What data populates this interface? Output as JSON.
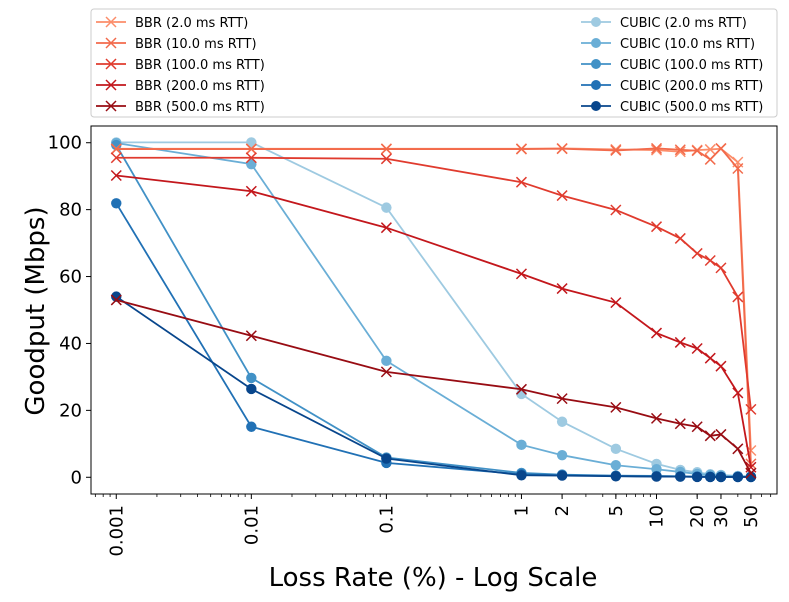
{
  "chart_data": {
    "type": "line",
    "xscale": "log",
    "xlabel": "Loss Rate (%) - Log Scale",
    "ylabel": "Goodput (Mbps)",
    "xlim": [
      0.00065,
      78
    ],
    "ylim": [
      -5,
      105
    ],
    "xticks": [
      {
        "value": 0.001,
        "label": "0.001"
      },
      {
        "value": 0.01,
        "label": "0.01"
      },
      {
        "value": 0.1,
        "label": "0.1"
      },
      {
        "value": 1,
        "label": "1"
      },
      {
        "value": 2,
        "label": "2"
      },
      {
        "value": 5,
        "label": "5"
      },
      {
        "value": 10,
        "label": "10"
      },
      {
        "value": 20,
        "label": "20"
      },
      {
        "value": 30,
        "label": "30"
      },
      {
        "value": 50,
        "label": "50"
      }
    ],
    "yticks": [
      0,
      20,
      40,
      60,
      80,
      100
    ],
    "legend_position": "top, above plot",
    "series": [
      {
        "name": "BBR (2.0 ms RTT)",
        "color": "#fc8d6a",
        "marker": "x",
        "x": [
          0.001,
          0.01,
          0.1,
          1,
          2,
          5,
          10,
          15,
          20,
          25,
          30,
          40,
          50
        ],
        "y": [
          98.2,
          98.2,
          98.2,
          98.2,
          98.3,
          98.0,
          97.8,
          97.3,
          97.8,
          98.0,
          98.2,
          94.2,
          8.0
        ]
      },
      {
        "name": "BBR (10.0 ms RTT)",
        "color": "#f26a4b",
        "marker": "x",
        "x": [
          0.001,
          0.01,
          0.1,
          1,
          2,
          5,
          10,
          15,
          20,
          25,
          30,
          40,
          50
        ],
        "y": [
          98.1,
          98.1,
          98.1,
          98.1,
          98.2,
          97.7,
          98.3,
          97.9,
          97.6,
          95.0,
          98.3,
          92.3,
          4.0
        ]
      },
      {
        "name": "BBR (100.0 ms RTT)",
        "color": "#e03b2e",
        "marker": "x",
        "x": [
          0.001,
          0.01,
          0.1,
          1,
          2,
          5,
          10,
          15,
          20,
          25,
          30,
          40,
          50
        ],
        "y": [
          95.5,
          95.5,
          95.2,
          88.2,
          84.2,
          79.9,
          74.9,
          71.4,
          66.9,
          64.8,
          62.6,
          53.9,
          20.3
        ]
      },
      {
        "name": "BBR (200.0 ms RTT)",
        "color": "#c3171c",
        "marker": "x",
        "x": [
          0.001,
          0.01,
          0.1,
          1,
          2,
          5,
          10,
          15,
          20,
          25,
          30,
          40,
          50
        ],
        "y": [
          90.2,
          85.5,
          74.6,
          60.8,
          56.4,
          52.2,
          43.1,
          40.3,
          38.5,
          35.6,
          33.2,
          25.2,
          3.0
        ]
      },
      {
        "name": "BBR (500.0 ms RTT)",
        "color": "#980c13",
        "marker": "x",
        "x": [
          0.001,
          0.01,
          0.1,
          1,
          2,
          5,
          10,
          15,
          20,
          25,
          30,
          40,
          50
        ],
        "y": [
          53.0,
          42.3,
          31.5,
          26.3,
          23.5,
          20.9,
          17.6,
          16.0,
          15.1,
          12.4,
          12.8,
          8.5,
          1.2
        ]
      },
      {
        "name": "CUBIC (2.0 ms RTT)",
        "color": "#9ecae1",
        "marker": "o",
        "x": [
          0.001,
          0.01,
          0.1,
          1,
          2,
          5,
          10,
          15,
          20,
          25,
          30,
          40,
          50
        ],
        "y": [
          100.1,
          100.1,
          80.6,
          24.9,
          16.6,
          8.5,
          4.0,
          2.2,
          1.5,
          0.9,
          0.7,
          0.4,
          0.3
        ]
      },
      {
        "name": "CUBIC (10.0 ms RTT)",
        "color": "#6aaed6",
        "marker": "o",
        "x": [
          0.001,
          0.01,
          0.1,
          1,
          2,
          5,
          10,
          15,
          20,
          25,
          30,
          40,
          50
        ],
        "y": [
          99.9,
          93.6,
          34.8,
          9.7,
          6.6,
          3.6,
          2.4,
          1.6,
          1.0,
          0.7,
          0.5,
          0.3,
          0.2
        ]
      },
      {
        "name": "CUBIC (100.0 ms RTT)",
        "color": "#4191c6",
        "marker": "o",
        "x": [
          0.001,
          0.01,
          0.1,
          1,
          2,
          5,
          10,
          15,
          20,
          25,
          30,
          40,
          50
        ],
        "y": [
          99.3,
          29.7,
          5.9,
          1.3,
          0.8,
          0.5,
          0.4,
          0.3,
          0.2,
          0.2,
          0.1,
          0.1,
          0.1
        ]
      },
      {
        "name": "CUBIC (200.0 ms RTT)",
        "color": "#2171b5",
        "marker": "o",
        "x": [
          0.001,
          0.01,
          0.1,
          1,
          2,
          5,
          10,
          15,
          20,
          25,
          30,
          40,
          50
        ],
        "y": [
          81.9,
          15.1,
          4.3,
          0.9,
          0.6,
          0.4,
          0.3,
          0.2,
          0.2,
          0.1,
          0.1,
          0.1,
          0.1
        ]
      },
      {
        "name": "CUBIC (500.0 ms RTT)",
        "color": "#08468c",
        "marker": "o",
        "x": [
          0.001,
          0.01,
          0.1,
          1,
          2,
          5,
          10,
          15,
          20,
          25,
          30,
          40,
          50
        ],
        "y": [
          54.0,
          26.4,
          5.6,
          0.6,
          0.5,
          0.3,
          0.2,
          0.2,
          0.1,
          0.1,
          0.1,
          0.1,
          0.1
        ]
      }
    ]
  }
}
